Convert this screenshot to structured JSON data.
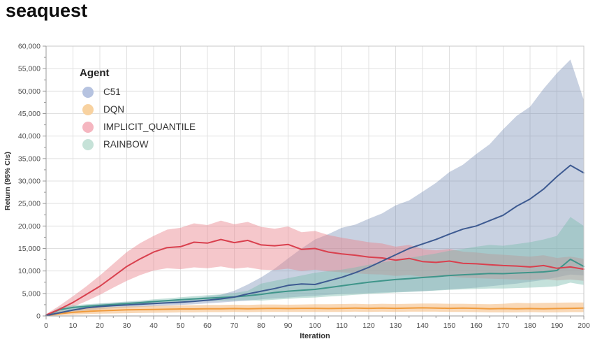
{
  "page_title": "seaquest",
  "legend": {
    "title": "Agent",
    "items": [
      {
        "label": "C51",
        "swatch": "#b6c3e0"
      },
      {
        "label": "DQN",
        "swatch": "#f8d2a0"
      },
      {
        "label": "IMPLICIT_QUANTILE",
        "swatch": "#f5b6c0"
      },
      {
        "label": "RAINBOW",
        "swatch": "#c6e2d8"
      }
    ]
  },
  "chart_data": {
    "type": "line",
    "title": "seaquest",
    "xlabel": "Iteration",
    "ylabel": "Return (95% CIs)",
    "xlim": [
      0,
      200
    ],
    "ylim": [
      0,
      60000
    ],
    "x_tick_major": 10,
    "x_tick_minor": 5,
    "y_tick_major": 5000,
    "y_tick_minor": 2500,
    "grid": true,
    "legend_position": "upper-left-inside",
    "x": [
      0,
      5,
      10,
      15,
      20,
      25,
      30,
      35,
      40,
      45,
      50,
      55,
      60,
      65,
      70,
      75,
      80,
      85,
      90,
      95,
      100,
      105,
      110,
      115,
      120,
      125,
      130,
      135,
      140,
      145,
      150,
      155,
      160,
      165,
      170,
      175,
      180,
      185,
      190,
      195,
      200
    ],
    "series": [
      {
        "name": "C51",
        "line_color": "#3d5a91",
        "band_color": "rgba(98,122,168,0.35)",
        "values": [
          100,
          700,
          1300,
          1800,
          2100,
          2300,
          2450,
          2600,
          2750,
          2900,
          3050,
          3250,
          3500,
          3800,
          4200,
          4900,
          5500,
          6100,
          6800,
          7100,
          7000,
          7800,
          8600,
          9600,
          10800,
          12200,
          13600,
          15000,
          16000,
          17000,
          18200,
          19300,
          20000,
          21200,
          22400,
          24400,
          26000,
          28200,
          31000,
          33500,
          31800
        ],
        "lower": [
          0,
          400,
          800,
          1200,
          1500,
          1700,
          1850,
          2000,
          2150,
          2300,
          2450,
          2600,
          2800,
          3000,
          3200,
          3400,
          3700,
          3900,
          4100,
          4300,
          4500,
          4700,
          4900,
          5000,
          5100,
          5200,
          5300,
          5400,
          5500,
          5700,
          5900,
          6100,
          6300,
          6600,
          6900,
          7200,
          7600,
          8000,
          8600,
          9200,
          9000
        ],
        "upper": [
          200,
          1000,
          1800,
          2400,
          2700,
          2900,
          3050,
          3200,
          3350,
          3500,
          3700,
          3900,
          4300,
          4700,
          5600,
          7000,
          8600,
          10500,
          12800,
          15000,
          17000,
          18200,
          19600,
          20300,
          21600,
          22800,
          24600,
          25700,
          27600,
          29600,
          32000,
          33600,
          36000,
          38200,
          41500,
          44500,
          46500,
          50500,
          54000,
          57000,
          48000
        ]
      },
      {
        "name": "DQN",
        "line_color": "#f09b3c",
        "band_color": "rgba(244,178,110,0.5)",
        "values": [
          100,
          500,
          800,
          1000,
          1150,
          1250,
          1350,
          1400,
          1450,
          1500,
          1550,
          1550,
          1600,
          1600,
          1650,
          1600,
          1650,
          1700,
          1650,
          1700,
          1700,
          1650,
          1700,
          1750,
          1700,
          1750,
          1700,
          1750,
          1800,
          1750,
          1700,
          1750,
          1700,
          1600,
          1650,
          1600,
          1650,
          1600,
          1650,
          1700,
          1750
        ],
        "lower": [
          0,
          150,
          300,
          400,
          500,
          550,
          600,
          650,
          700,
          750,
          800,
          800,
          850,
          850,
          900,
          850,
          900,
          900,
          900,
          900,
          900,
          900,
          900,
          950,
          900,
          950,
          900,
          950,
          950,
          950,
          900,
          900,
          850,
          800,
          800,
          800,
          850,
          800,
          800,
          850,
          850
        ],
        "upper": [
          200,
          900,
          1400,
          1700,
          1900,
          2000,
          2100,
          2150,
          2250,
          2300,
          2350,
          2400,
          2450,
          2450,
          2500,
          2450,
          2550,
          2550,
          2500,
          2550,
          2600,
          2600,
          2650,
          2700,
          2600,
          2700,
          2650,
          2700,
          2750,
          2750,
          2700,
          2700,
          2650,
          2600,
          2700,
          2900,
          2850,
          2900,
          2950,
          3000,
          3000
        ]
      },
      {
        "name": "IMPLICIT_QUANTILE",
        "line_color": "#d9404e",
        "band_color": "rgba(233,130,140,0.45)",
        "values": [
          200,
          1500,
          3000,
          4800,
          6600,
          8800,
          11000,
          12700,
          14200,
          15200,
          15400,
          16400,
          16200,
          17000,
          16300,
          16800,
          15800,
          15600,
          15900,
          14800,
          15000,
          14200,
          13800,
          13500,
          13100,
          12900,
          12400,
          12800,
          12100,
          11900,
          12200,
          11700,
          11600,
          11400,
          11200,
          11100,
          10900,
          11200,
          10600,
          10900,
          10400
        ],
        "lower": [
          0,
          900,
          2000,
          3300,
          4700,
          6300,
          7800,
          9100,
          10100,
          10600,
          10400,
          10800,
          10600,
          11000,
          10500,
          10800,
          10300,
          10200,
          10500,
          10000,
          10300,
          9900,
          9700,
          9500,
          9300,
          9200,
          8900,
          9100,
          8700,
          8600,
          8800,
          8500,
          8400,
          8300,
          8200,
          8100,
          8000,
          8200,
          7900,
          8100,
          7800
        ],
        "upper": [
          400,
          2300,
          4400,
          6600,
          9000,
          11600,
          14200,
          16200,
          17800,
          19200,
          19600,
          20600,
          20200,
          21200,
          20400,
          20900,
          19800,
          19400,
          19900,
          18600,
          18900,
          18000,
          17400,
          16900,
          16400,
          16100,
          15400,
          15800,
          14900,
          14600,
          14900,
          14300,
          14100,
          13800,
          13600,
          13400,
          13200,
          13500,
          12900,
          13200,
          12700
        ]
      },
      {
        "name": "RAINBOW",
        "line_color": "#3f958a",
        "band_color": "rgba(125,188,175,0.45)",
        "values": [
          100,
          1400,
          1900,
          2150,
          2350,
          2550,
          2750,
          2950,
          3200,
          3400,
          3600,
          3800,
          3950,
          4100,
          4250,
          4500,
          4800,
          5200,
          5500,
          5700,
          5900,
          6300,
          6700,
          7100,
          7500,
          7800,
          8100,
          8300,
          8550,
          8750,
          9000,
          9150,
          9300,
          9450,
          9400,
          9550,
          9650,
          9800,
          10100,
          12600,
          11000
        ],
        "lower": [
          0,
          900,
          1400,
          1700,
          1900,
          2100,
          2300,
          2500,
          2700,
          2900,
          3050,
          3200,
          3300,
          3400,
          3450,
          3500,
          3400,
          3600,
          3800,
          4000,
          4100,
          4300,
          4500,
          4700,
          4900,
          5050,
          5200,
          5350,
          5500,
          5650,
          5800,
          5900,
          6000,
          6100,
          6100,
          6200,
          6300,
          6400,
          6600,
          7400,
          6900
        ],
        "upper": [
          200,
          1900,
          2400,
          2600,
          2800,
          3000,
          3200,
          3400,
          3700,
          3900,
          4150,
          4400,
          4600,
          4800,
          5100,
          5600,
          7200,
          7800,
          8400,
          9000,
          9600,
          10000,
          10300,
          10800,
          11400,
          11900,
          12400,
          12900,
          13400,
          13900,
          14500,
          14900,
          15400,
          15800,
          15600,
          16000,
          16400,
          17000,
          17800,
          22000,
          20000
        ]
      }
    ],
    "line_draw_order": [
      1,
      3,
      2,
      0
    ],
    "colors": {
      "grid": "#e0e0e0",
      "border": "#c8c8c8",
      "spine": "#9a9a9a",
      "tick_label": "#4d4d4d",
      "axis_title": "#333333"
    }
  }
}
